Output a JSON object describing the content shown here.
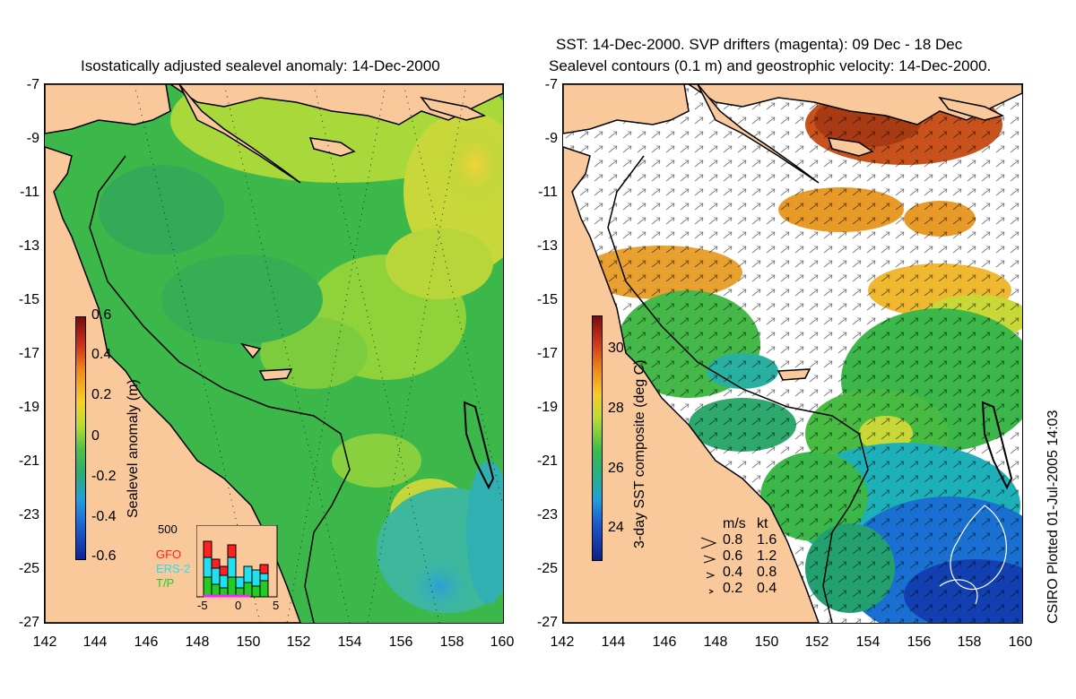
{
  "left_map": {
    "title": "Isostatically adjusted sealevel anomaly: 14-Dec-2000",
    "colorbar_label": "Sealevel anomaly (m)",
    "colorbar_ticks": [
      "0.6",
      "0.4",
      "0.2",
      "0",
      "-0.2",
      "-0.4",
      "-0.6"
    ],
    "colorbar_range": [
      -0.6,
      0.6
    ],
    "histogram": {
      "ymax_label": "500",
      "legend": [
        "GFO",
        "ERS-2",
        "T/P"
      ],
      "legend_colors": [
        "#ff2020",
        "#22e0f0",
        "#22cc22"
      ],
      "x_ticks": [
        "-5",
        "0",
        "5"
      ]
    }
  },
  "right_map": {
    "title_line1": "SST: 14-Dec-2000. SVP drifters (magenta): 09 Dec - 18 Dec",
    "title_line2": "Sealevel contours (0.1 m) and geostrophic velocity: 14-Dec-2000.",
    "colorbar_label": "3-day SST composite (deg C)",
    "colorbar_ticks": [
      "30",
      "28",
      "26",
      "24"
    ],
    "colorbar_range": [
      23,
      31
    ],
    "speed_legend": {
      "header_ms": "m/s",
      "header_kt": "kt",
      "rows": [
        {
          "ms": "0.8",
          "kt": "1.6"
        },
        {
          "ms": "0.6",
          "kt": "1.2"
        },
        {
          "ms": "0.4",
          "kt": "0.8"
        },
        {
          "ms": "0.2",
          "kt": "0.4"
        }
      ]
    }
  },
  "axes": {
    "lat_ticks": [
      "-7",
      "-9",
      "-11",
      "-13",
      "-15",
      "-17",
      "-19",
      "-21",
      "-23",
      "-25",
      "-27"
    ],
    "lon_ticks": [
      "142",
      "144",
      "146",
      "148",
      "150",
      "152",
      "154",
      "156",
      "158",
      "160"
    ],
    "lat_range": [
      -27,
      -7
    ],
    "lon_range": [
      142,
      160
    ]
  },
  "credit": "CSIRO Plotted 01-Jul-2005 14:03",
  "colors": {
    "land": "#f9c89b",
    "sea_green": "#3cb84a",
    "sst_white": "#ffffff"
  }
}
